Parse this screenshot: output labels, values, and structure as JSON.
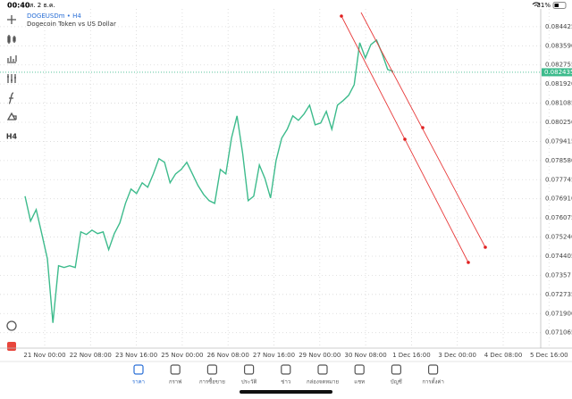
{
  "status_bar": {
    "time": "00:40",
    "date": "ส. 2 ธ.ค.",
    "battery": "31%"
  },
  "toolbar": {
    "timeframe": "H4"
  },
  "chart_data": {
    "type": "line",
    "title": "DOGEUSDm • H4",
    "subtitle": "Dogecoin Token vs US Dollar",
    "color": "#3dbb8c",
    "current_price": 0.082435,
    "ylim": [
      0.07,
      0.0852
    ],
    "grid": true,
    "yticks": [
      0.084425,
      {
        "value": 0.08359,
        "label": "0.083590"
      },
      0.082755,
      {
        "value": 0.08192,
        "label": "0.081920"
      },
      0.081085,
      {
        "value": 0.08025,
        "label": "0.080250"
      },
      0.079415,
      {
        "value": 0.07858,
        "label": "0.078580"
      },
      0.077745,
      {
        "value": 0.07691,
        "label": "0.076910"
      },
      0.076075,
      {
        "value": 0.07524,
        "label": "0.075240"
      },
      0.074405,
      0.07357,
      0.072735,
      {
        "value": 0.0719,
        "label": "0.071900"
      },
      0.071065
    ],
    "xtick_labels": [
      "21 Nov 00:00",
      "22 Nov 08:00",
      "23 Nov 16:00",
      "25 Nov 00:00",
      "26 Nov 08:00",
      "27 Nov 16:00",
      "29 Nov 00:00",
      "30 Nov 08:00",
      "1 Dec 16:00",
      "3 Dec 00:00",
      "4 Dec 08:00",
      "5 Dec 16:00"
    ],
    "values": [
      0.077025,
      0.075934,
      0.07644,
      0.075389,
      0.074298,
      0.071494,
      0.073986,
      0.073908,
      0.073986,
      0.073908,
      0.075466,
      0.07535,
      0.075544,
      0.075389,
      0.075466,
      0.074687,
      0.075389,
      0.075856,
      0.076713,
      0.077336,
      0.077141,
      0.077609,
      0.077414,
      0.077998,
      0.07866,
      0.078505,
      0.077609,
      0.077998,
      0.078193,
      0.078505,
      0.077998,
      0.077492,
      0.077102,
      0.07683,
      0.076713,
      0.078193,
      0.077998,
      0.079556,
      0.08053,
      0.078894,
      0.07683,
      0.077025,
      0.078388,
      0.077803,
      0.076947,
      0.078582,
      0.079556,
      0.079946,
      0.08053,
      0.080335,
      0.080608,
      0.080997,
      0.08014,
      0.080218,
      0.080725,
      0.079946,
      0.080997,
      0.081192,
      0.081426,
      0.081893,
      0.083724,
      0.083062,
      0.083646,
      0.083841,
      0.083256,
      0.082555,
      0.082477
    ]
  },
  "bottom_nav": {
    "items": [
      "ราคา",
      "กราฟ",
      "การซื้อขาย",
      "ประวัติ",
      "ข่าว",
      "กล่องจดหมาย",
      "แชท",
      "บัญชี",
      "การตั้งค่า"
    ]
  }
}
